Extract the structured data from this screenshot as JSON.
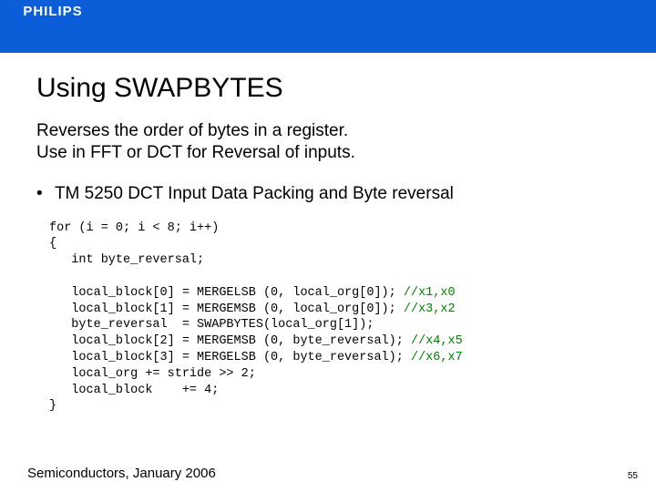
{
  "logo": "PHILIPS",
  "title": "Using SWAPBYTES",
  "desc_line1": "Reverses the order of bytes in a register.",
  "desc_line2": "Use in FFT or DCT for Reversal of inputs.",
  "bullet": "TM 5250 DCT Input Data Packing and Byte reversal",
  "code": {
    "l1": "for (i = 0; i < 8; i++)",
    "l2": "{",
    "l3": "   int byte_reversal;",
    "l4": "",
    "l5a": "   local_block[0] = MERGELSB (0, local_org[0]); ",
    "l5b": "//x1,x0",
    "l6a": "   local_block[1] = MERGEMSB (0, local_org[0]); ",
    "l6b": "//x3,x2",
    "l7": "   byte_reversal  = SWAPBYTES(local_org[1]);",
    "l8a": "   local_block[2] = MERGEMSB (0, byte_reversal); ",
    "l8b": "//x4,x5",
    "l9a": "   local_block[3] = MERGELSB (0, byte_reversal); ",
    "l9b": "//x6,x7",
    "l10": "   local_org += stride >> 2;",
    "l11": "   local_block    += 4;",
    "l12": "}"
  },
  "footer": "Semiconductors, January 2006",
  "pagenum": "55",
  "colors": {
    "blue": "#0b5ed7",
    "green": "#008000",
    "text": "#000000",
    "bg": "#ffffff"
  }
}
